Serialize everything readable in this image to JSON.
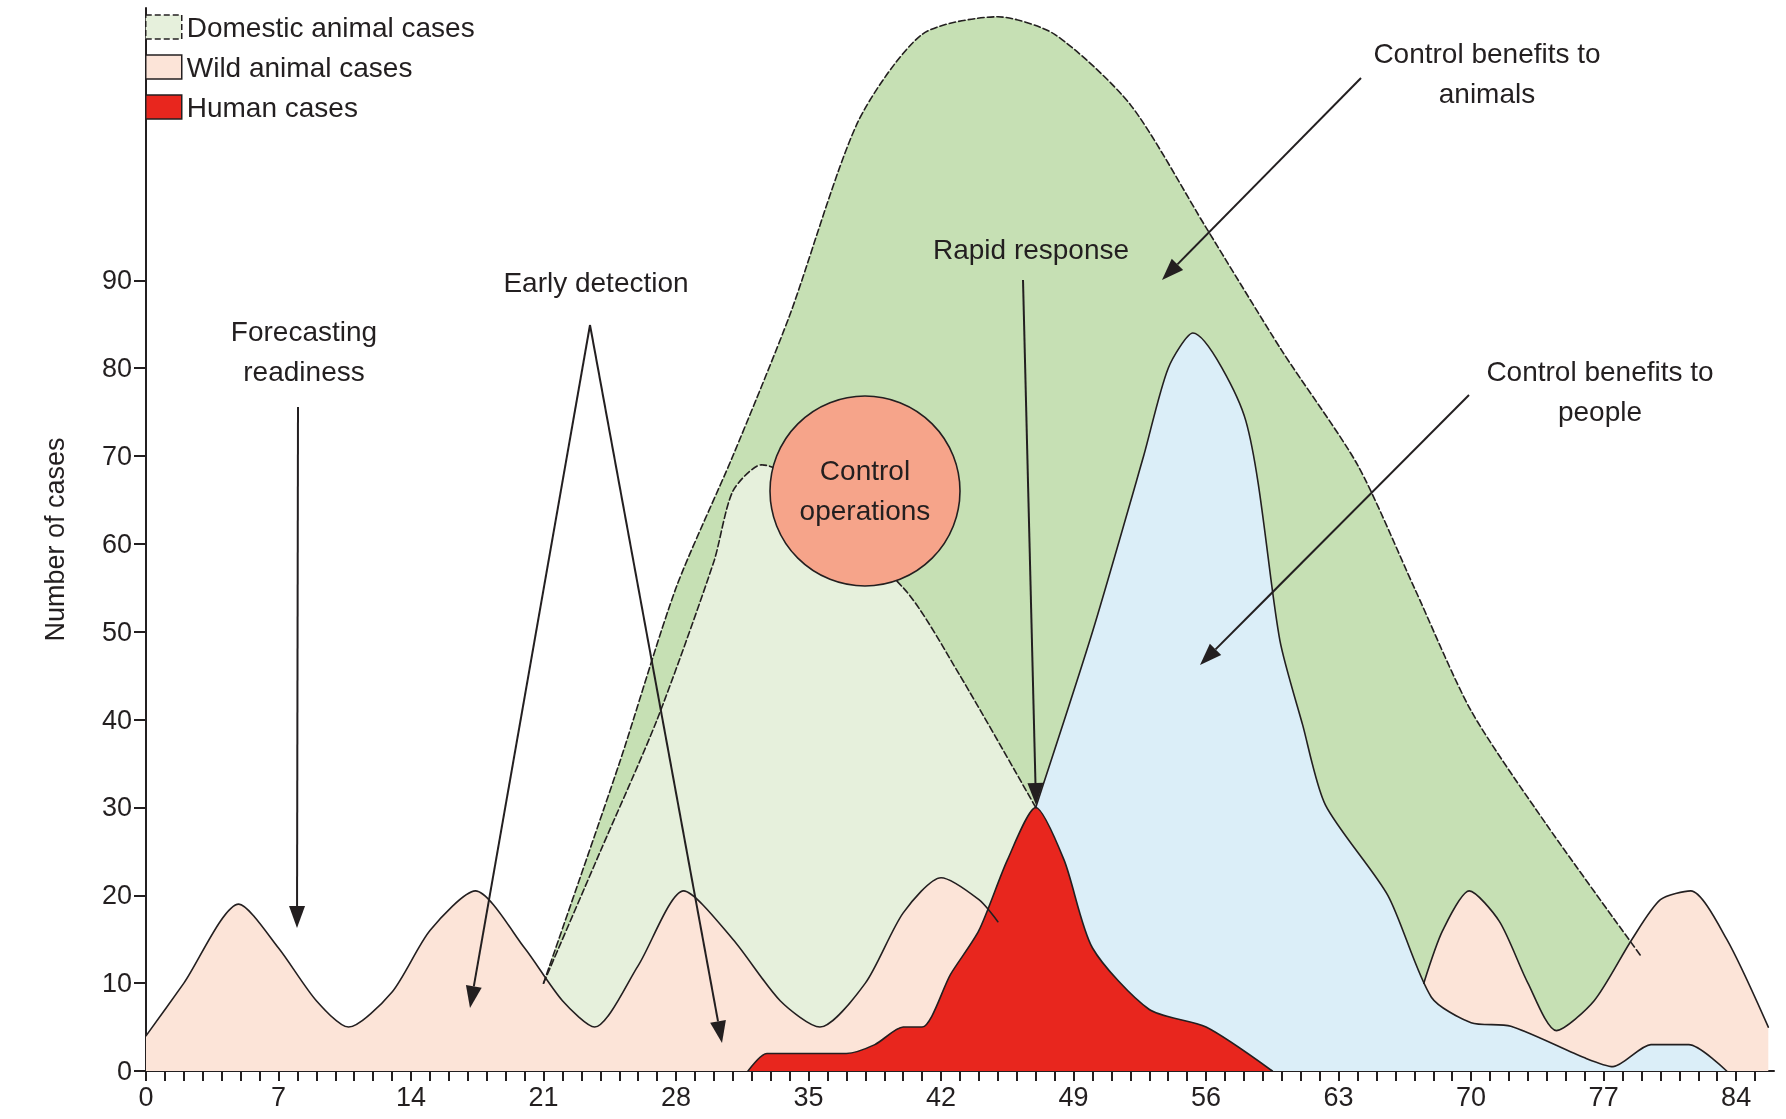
{
  "chart_data": {
    "type": "area",
    "ylabel": "Number of cases",
    "xlim": [
      0,
      86
    ],
    "ylim": [
      0,
      121
    ],
    "xticks": [
      0,
      {
        "value": 1,
        "label": null
      },
      {
        "value": 2,
        "label": null
      },
      {
        "value": 3,
        "label": null
      },
      {
        "value": 4,
        "label": null
      },
      {
        "value": 5,
        "label": null
      },
      {
        "value": 6,
        "label": null
      },
      7,
      {
        "value": 8,
        "label": null
      },
      {
        "value": 9,
        "label": null
      },
      {
        "value": 10,
        "label": null
      },
      {
        "value": 11,
        "label": null
      },
      {
        "value": 12,
        "label": null
      },
      {
        "value": 13,
        "label": null
      },
      14,
      {
        "value": 15,
        "label": null
      },
      {
        "value": 16,
        "label": null
      },
      {
        "value": 17,
        "label": null
      },
      {
        "value": 18,
        "label": null
      },
      {
        "value": 19,
        "label": null
      },
      {
        "value": 20,
        "label": null
      },
      21,
      {
        "value": 22,
        "label": null
      },
      {
        "value": 23,
        "label": null
      },
      {
        "value": 24,
        "label": null
      },
      {
        "value": 25,
        "label": null
      },
      {
        "value": 26,
        "label": null
      },
      {
        "value": 27,
        "label": null
      },
      28,
      {
        "value": 29,
        "label": null
      },
      {
        "value": 30,
        "label": null
      },
      {
        "value": 31,
        "label": null
      },
      {
        "value": 32,
        "label": null
      },
      {
        "value": 33,
        "label": null
      },
      {
        "value": 34,
        "label": null
      },
      35,
      {
        "value": 36,
        "label": null
      },
      {
        "value": 37,
        "label": null
      },
      {
        "value": 38,
        "label": null
      },
      {
        "value": 39,
        "label": null
      },
      {
        "value": 40,
        "label": null
      },
      {
        "value": 41,
        "label": null
      },
      42,
      {
        "value": 43,
        "label": null
      },
      {
        "value": 44,
        "label": null
      },
      {
        "value": 45,
        "label": null
      },
      {
        "value": 46,
        "label": null
      },
      {
        "value": 47,
        "label": null
      },
      {
        "value": 48,
        "label": null
      },
      49,
      {
        "value": 50,
        "label": null
      },
      {
        "value": 51,
        "label": null
      },
      {
        "value": 52,
        "label": null
      },
      {
        "value": 53,
        "label": null
      },
      {
        "value": 54,
        "label": null
      },
      {
        "value": 55,
        "label": null
      },
      56,
      {
        "value": 57,
        "label": null
      },
      {
        "value": 58,
        "label": null
      },
      {
        "value": 59,
        "label": null
      },
      {
        "value": 60,
        "label": null
      },
      {
        "value": 61,
        "label": null
      },
      {
        "value": 62,
        "label": null
      },
      63,
      {
        "value": 64,
        "label": null
      },
      {
        "value": 65,
        "label": null
      },
      {
        "value": 66,
        "label": null
      },
      {
        "value": 67,
        "label": null
      },
      {
        "value": 68,
        "label": null
      },
      {
        "value": 69,
        "label": null
      },
      70,
      {
        "value": 71,
        "label": null
      },
      {
        "value": 72,
        "label": null
      },
      {
        "value": 73,
        "label": null
      },
      {
        "value": 74,
        "label": null
      },
      {
        "value": 75,
        "label": null
      },
      {
        "value": 76,
        "label": null
      },
      77,
      {
        "value": 78,
        "label": null
      },
      {
        "value": 79,
        "label": null
      },
      {
        "value": 80,
        "label": null
      },
      {
        "value": 81,
        "label": null
      },
      {
        "value": 82,
        "label": null
      },
      {
        "value": 83,
        "label": null
      },
      84,
      {
        "value": 85,
        "label": null
      }
    ],
    "yticks": [
      0,
      10,
      20,
      30,
      40,
      50,
      60,
      70,
      80,
      90
    ],
    "grid": false,
    "legend": "top left",
    "marker": "none",
    "series": [
      {
        "color": "#c6e0b4",
        "line_style": "dashed",
        "x": [
          21,
          25,
          28,
          31,
          34,
          37.6,
          41,
          45,
          48,
          52,
          56,
          60,
          64,
          67,
          70,
          74,
          79
        ],
        "values": [
          10,
          35,
          55,
          70,
          86,
          108,
          118,
          120,
          118,
          110,
          96,
          82,
          69,
          55,
          41,
          28,
          13
        ]
      },
      {
        "name": "Domestic animal cases",
        "color": "#e6f0dc",
        "line_style": "dashed",
        "x": [
          21,
          24,
          27,
          30,
          31,
          32.5,
          40,
          43,
          47
        ],
        "values": [
          10,
          25,
          40,
          58,
          66,
          69,
          55,
          45,
          30
        ]
      },
      {
        "name": "Wild animal cases",
        "color": "#fce4d8",
        "line_style": "solid",
        "x": [
          0,
          2,
          4.9,
          7,
          9,
          10.7,
          13,
          15,
          17.4,
          20,
          22,
          23.7,
          26,
          28.4,
          31,
          33.5,
          35.6,
          38,
          40,
          42,
          44,
          45,
          46,
          67.5,
          68.5,
          69.9,
          71.5,
          73,
          74.5,
          76.5,
          78.5,
          80,
          81.6,
          83.5,
          85.7
        ],
        "values": [
          4,
          10,
          19,
          14,
          8,
          5,
          9,
          16,
          20.5,
          14,
          8,
          5,
          12,
          20.5,
          15,
          8,
          5,
          10,
          18,
          22,
          19.5,
          17,
          null,
          10,
          16,
          20.5,
          17,
          10,
          4.6,
          8,
          15,
          19.5,
          20.5,
          15,
          5
        ]
      },
      {
        "color": "#dbeef8",
        "line_style": "solid",
        "x": [
          47,
          50,
          52.7,
          54,
          55.3,
          58.1,
          59.9,
          61.1,
          62.3,
          65.6,
          67.9,
          70,
          72.1,
          76,
          77.5,
          79.5,
          81.5,
          83.5
        ],
        "values": [
          30,
          50,
          70,
          80,
          84,
          74,
          49,
          39.4,
          30.3,
          20,
          8.4,
          5.5,
          5.1,
          1.5,
          0.5,
          3,
          3,
          0
        ]
      },
      {
        "name": "Human cases",
        "color": "#e8261e",
        "line_style": "solid",
        "x": [
          31.8,
          32.8,
          37,
          38.5,
          40,
          41,
          42.5,
          44,
          45.5,
          47,
          48.5,
          50,
          53,
          56,
          59.5
        ],
        "values": [
          0,
          2,
          2,
          3,
          5,
          5,
          11,
          16,
          24,
          30,
          24,
          14,
          7,
          5,
          0
        ]
      }
    ],
    "annotations": [
      "Forecasting readiness",
      "Early detection",
      "Rapid response",
      "Control benefits to animals",
      "Control benefits to people",
      "Control operations"
    ]
  }
}
